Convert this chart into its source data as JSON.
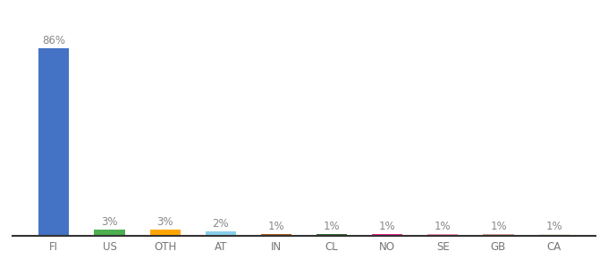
{
  "categories": [
    "FI",
    "US",
    "OTH",
    "AT",
    "IN",
    "CL",
    "NO",
    "SE",
    "GB",
    "CA"
  ],
  "values": [
    86,
    3,
    3,
    2,
    1,
    1,
    1,
    1,
    1,
    1
  ],
  "labels": [
    "86%",
    "3%",
    "3%",
    "2%",
    "1%",
    "1%",
    "1%",
    "1%",
    "1%",
    "1%"
  ],
  "bar_colors": [
    "#4472c4",
    "#4caf50",
    "#ffa500",
    "#87ceeb",
    "#b05a10",
    "#2e6b2e",
    "#e91e8c",
    "#f48fb1",
    "#d2a090",
    "#f0ead8"
  ],
  "label_fontsize": 8.5,
  "tick_fontsize": 8.5,
  "background_color": "#ffffff",
  "ylim": [
    0,
    96
  ],
  "bar_width": 0.55
}
